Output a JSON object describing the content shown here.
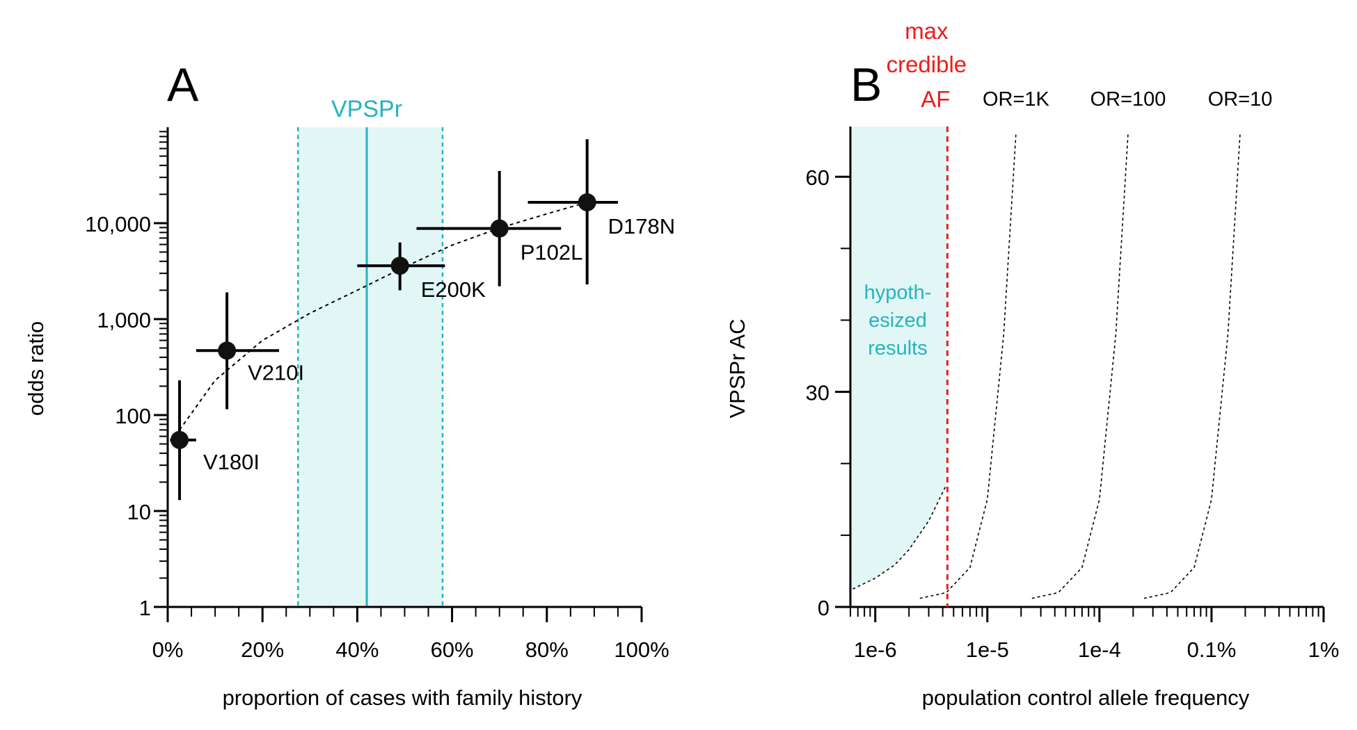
{
  "chart_data": [
    {
      "panel_label": "A",
      "type": "scatter",
      "xlabel": "proportion of cases with family history",
      "ylabel": "odds ratio",
      "x_scale": "linear",
      "y_scale": "log",
      "xlim": [
        0,
        1
      ],
      "ylim": [
        1,
        100000
      ],
      "x_ticks": [
        0,
        0.2,
        0.4,
        0.6,
        0.8,
        1.0
      ],
      "x_tick_labels": [
        "0%",
        "20%",
        "40%",
        "60%",
        "80%",
        "100%"
      ],
      "y_ticks": [
        1,
        10,
        100,
        1000,
        10000
      ],
      "y_tick_labels": [
        "1",
        "10",
        "100",
        "1,000",
        "10,000"
      ],
      "grid": false,
      "points": [
        {
          "label": "V180I",
          "x": 0.025,
          "y": 55,
          "x_err": [
            0.005,
            0.06
          ],
          "y_err": [
            13,
            230
          ]
        },
        {
          "label": "V210I",
          "x": 0.125,
          "y": 470,
          "x_err": [
            0.06,
            0.235
          ],
          "y_err": [
            115,
            1900
          ]
        },
        {
          "label": "E200K",
          "x": 0.49,
          "y": 3600,
          "x_err": [
            0.4,
            0.585
          ],
          "y_err": [
            2000,
            6300
          ]
        },
        {
          "label": "P102L",
          "x": 0.7,
          "y": 8800,
          "x_err": [
            0.525,
            0.83
          ],
          "y_err": [
            2200,
            35000
          ]
        },
        {
          "label": "D178N",
          "x": 0.885,
          "y": 16500,
          "x_err": [
            0.76,
            0.95
          ],
          "y_err": [
            2300,
            75000
          ]
        }
      ],
      "trend_curve": {
        "style": "dotted",
        "x": [
          0.025,
          0.1,
          0.2,
          0.3,
          0.4,
          0.5,
          0.6,
          0.7,
          0.8,
          0.885
        ],
        "y": [
          70,
          230,
          600,
          1150,
          2000,
          3500,
          5900,
          8900,
          12500,
          16500
        ]
      },
      "band": {
        "label": "VPSPr",
        "center": 0.42,
        "low": 0.275,
        "high": 0.58,
        "color": "#22b5bd",
        "fill": "#e2f6f6"
      },
      "point_color": "#000000"
    },
    {
      "panel_label": "B",
      "type": "line",
      "xlabel": "population control allele frequency",
      "ylabel": "VPSPr AC",
      "x_scale": "log",
      "y_scale": "linear",
      "xlim": [
        6e-07,
        0.01
      ],
      "ylim": [
        0,
        67
      ],
      "x_ticks": [
        1e-06,
        1e-05,
        0.0001,
        0.001,
        0.01
      ],
      "x_tick_labels": [
        "1e-6",
        "1e-5",
        "1e-4",
        "0.1%",
        "1%"
      ],
      "y_ticks": [
        0,
        30,
        60
      ],
      "y_tick_labels": [
        "0",
        "30",
        "60"
      ],
      "y_minor_step": 10,
      "grid": false,
      "series": [
        {
          "name": "",
          "style": "dotted",
          "x": [
            6.3e-07,
            1e-06,
            1.5e-06,
            2e-06,
            3e-06,
            4.3e-06
          ],
          "y": [
            2.5,
            4,
            5.9,
            8,
            12,
            17
          ]
        },
        {
          "name": "OR=1K",
          "style": "dotted",
          "x": [
            2.5e-06,
            4.3e-06,
            7e-06,
            1e-05,
            1.4e-05,
            1.8e-05
          ],
          "y": [
            1.2,
            2,
            5.5,
            15,
            38,
            66
          ]
        },
        {
          "name": "OR=100",
          "style": "dotted",
          "x": [
            2.5e-05,
            4.3e-05,
            7e-05,
            0.0001,
            0.00014,
            0.00018
          ],
          "y": [
            1.2,
            2,
            5.5,
            15,
            38,
            66
          ]
        },
        {
          "name": "OR=10",
          "style": "dotted",
          "x": [
            0.00025,
            0.00043,
            0.0007,
            0.001,
            0.0014,
            0.0018
          ],
          "y": [
            1.2,
            2,
            5.5,
            15,
            38,
            66
          ]
        }
      ],
      "max_credible_af": {
        "x": 4.4e-06,
        "label_lines": [
          "max",
          "credible",
          "AF"
        ],
        "color": "#ee1c1c"
      },
      "shaded_region": {
        "label_lines": [
          "hypoth-",
          "esized",
          "results"
        ],
        "color": "#22b5bd",
        "fill": "#e2f6f6"
      }
    }
  ]
}
